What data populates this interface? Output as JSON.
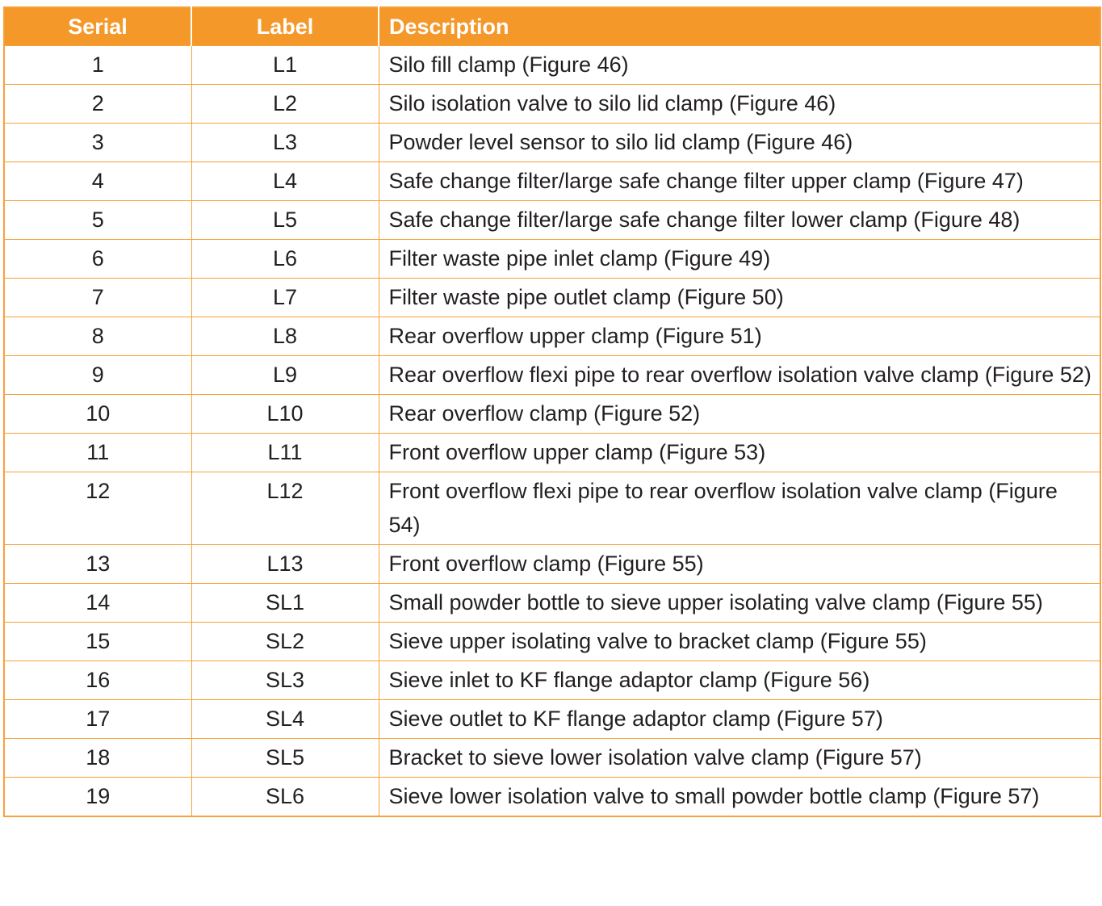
{
  "table": {
    "headers": {
      "serial": "Serial",
      "label": "Label",
      "description": "Description"
    },
    "rows": [
      {
        "serial": "1",
        "label": "L1",
        "description": "Silo fill clamp (Figure 46)"
      },
      {
        "serial": "2",
        "label": "L2",
        "description": "Silo isolation valve to silo lid clamp (Figure 46)"
      },
      {
        "serial": "3",
        "label": "L3",
        "description": "Powder level sensor to silo lid clamp (Figure 46)"
      },
      {
        "serial": "4",
        "label": "L4",
        "description": "Safe change filter/large safe change filter upper clamp (Figure 47)"
      },
      {
        "serial": "5",
        "label": "L5",
        "description": "Safe change filter/large safe change filter lower clamp (Figure 48)"
      },
      {
        "serial": "6",
        "label": "L6",
        "description": "Filter waste pipe inlet clamp (Figure 49)"
      },
      {
        "serial": "7",
        "label": "L7",
        "description": "Filter waste pipe outlet clamp (Figure 50)"
      },
      {
        "serial": "8",
        "label": "L8",
        "description": "Rear overflow upper clamp (Figure 51)"
      },
      {
        "serial": "9",
        "label": "L9",
        "description": "Rear overflow flexi pipe to rear overflow isolation valve clamp (Figure 52)"
      },
      {
        "serial": "10",
        "label": "L10",
        "description": "Rear overflow clamp (Figure 52)"
      },
      {
        "serial": "11",
        "label": "L11",
        "description": "Front overflow upper clamp (Figure 53)"
      },
      {
        "serial": "12",
        "label": "L12",
        "description": "Front overflow flexi pipe to rear overflow isolation valve clamp (Figure 54)"
      },
      {
        "serial": "13",
        "label": "L13",
        "description": "Front overflow clamp (Figure 55)"
      },
      {
        "serial": "14",
        "label": "SL1",
        "description": "Small powder bottle to sieve upper isolating valve clamp (Figure 55)"
      },
      {
        "serial": "15",
        "label": "SL2",
        "description": "Sieve upper isolating valve to bracket clamp (Figure 55)"
      },
      {
        "serial": "16",
        "label": "SL3",
        "description": "Sieve inlet to KF flange adaptor clamp (Figure 56)"
      },
      {
        "serial": "17",
        "label": "SL4",
        "description": "Sieve outlet to KF flange adaptor clamp (Figure 57)"
      },
      {
        "serial": "18",
        "label": "SL5",
        "description": "Bracket to sieve lower isolation valve clamp (Figure 57)"
      },
      {
        "serial": "19",
        "label": "SL6",
        "description": "Sieve lower isolation valve to small powder bottle clamp (Figure 57)"
      }
    ]
  },
  "colors": {
    "header_bg": "#f5982a",
    "border": "#f7a13a",
    "header_text": "#ffffff",
    "body_text": "#231f20"
  }
}
